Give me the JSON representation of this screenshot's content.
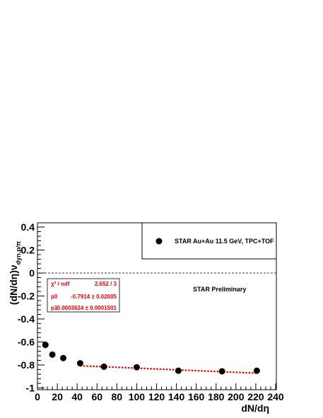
{
  "chart_data": {
    "type": "scatter",
    "xlabel": "dN/dη",
    "ylabel_main": "(dN/dη)ν",
    "ylabel_sub": "dyn,p/π",
    "xlim": [
      0,
      240
    ],
    "ylim": [
      -1.0,
      0.45
    ],
    "xticks": [
      0,
      20,
      40,
      60,
      80,
      100,
      120,
      140,
      160,
      180,
      200,
      220,
      240
    ],
    "yticks": [
      0.4,
      0.2,
      0,
      -0.2,
      -0.4,
      -0.6,
      -0.8,
      -1
    ],
    "ytick_labels": [
      "0.4",
      "0.2",
      "0",
      "-0.2",
      "-0.4",
      "-0.6",
      "-0.8",
      "-1"
    ],
    "series": [
      {
        "name": "STAR Au+Au 11.5 GeV, TPC+TOF",
        "color": "#000000",
        "x": [
          8,
          15,
          26,
          43,
          67,
          100,
          142,
          186,
          221
        ],
        "y": [
          -0.625,
          -0.71,
          -0.74,
          -0.785,
          -0.815,
          -0.82,
          -0.85,
          -0.855,
          -0.85
        ],
        "yerr": [
          0.03,
          0.025,
          0.02,
          0.015,
          0.015,
          0.015,
          0.015,
          0.015,
          0.015
        ]
      }
    ],
    "fit": {
      "color": "#e00000",
      "p0": -0.7914,
      "p1": -0.0003624,
      "x_range": [
        43,
        221
      ]
    },
    "zero_line": 0,
    "legend_position": "top-right",
    "annotation": "STAR Preliminary",
    "stats": {
      "rows": [
        {
          "label": "χ² / ndf",
          "value": "2.652 / 3"
        },
        {
          "label": "p0",
          "value": "-0.7914 ± 0.02005"
        },
        {
          "label": "p1",
          "value": "-0.0003624 ± 0.0001501"
        }
      ]
    }
  }
}
